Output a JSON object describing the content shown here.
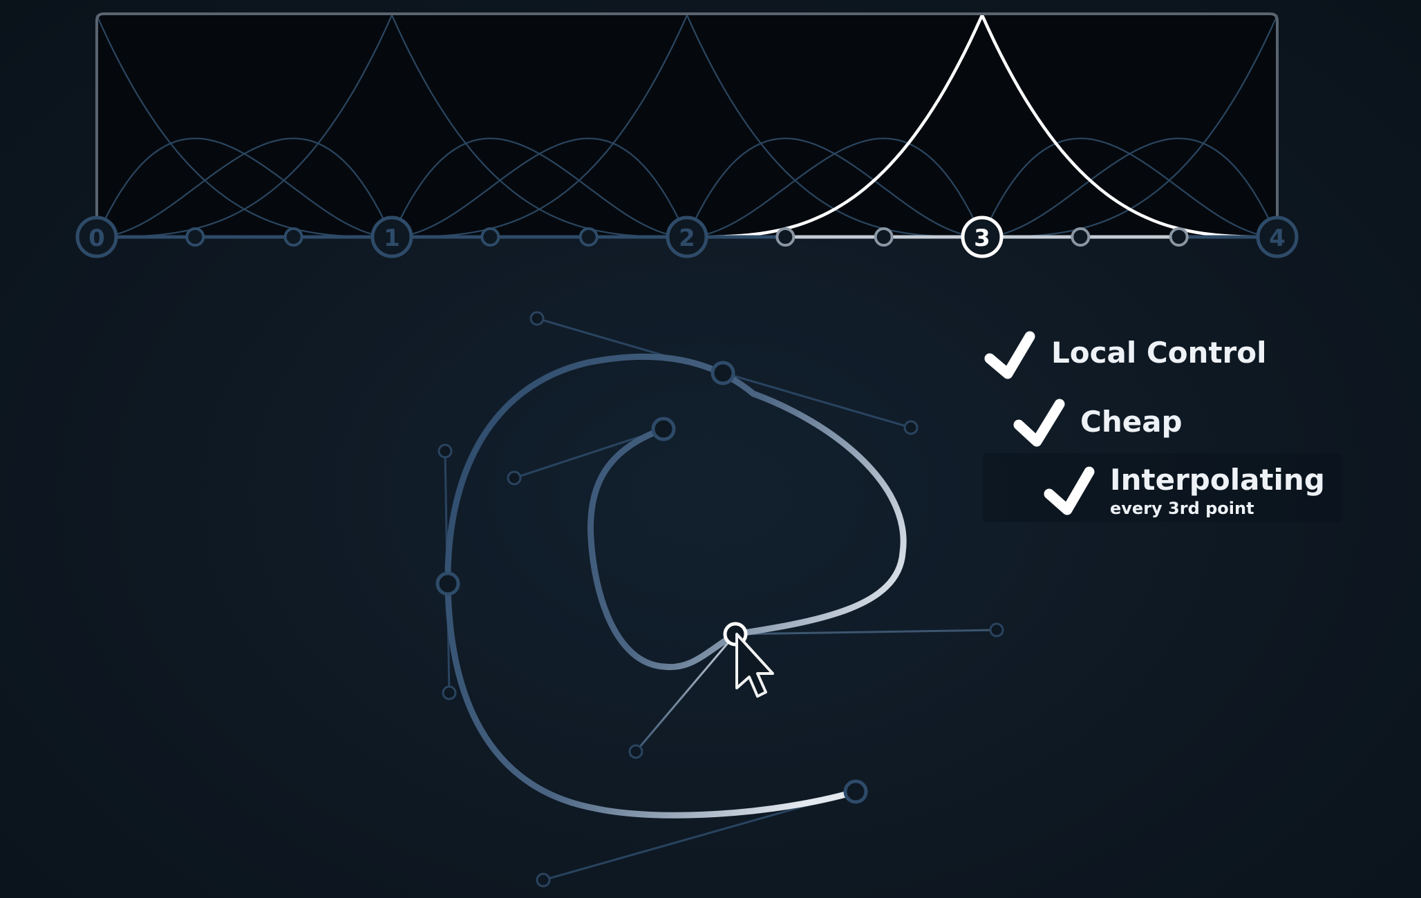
{
  "colors": {
    "background": "#0e1822",
    "panel": "#05090e",
    "frame": "#5a6470",
    "dim_curve": "#2b4660",
    "highlight": "#ffffff",
    "curve": "#2c4a6b",
    "text": "#eef2f6"
  },
  "basis_panel": {
    "knot_labels": [
      "0",
      "1",
      "2",
      "3",
      "4"
    ],
    "highlighted_knot": "3"
  },
  "checklist": {
    "items": [
      {
        "label": "Local Control",
        "icon": "checkmark-icon"
      },
      {
        "label": "Cheap",
        "icon": "checkmark-icon"
      },
      {
        "label": "Interpolating",
        "sublabel": "every 3rd point",
        "icon": "checkmark-icon"
      }
    ]
  },
  "spline_editor": {
    "cursor_icon": "arrow-cursor-icon"
  }
}
